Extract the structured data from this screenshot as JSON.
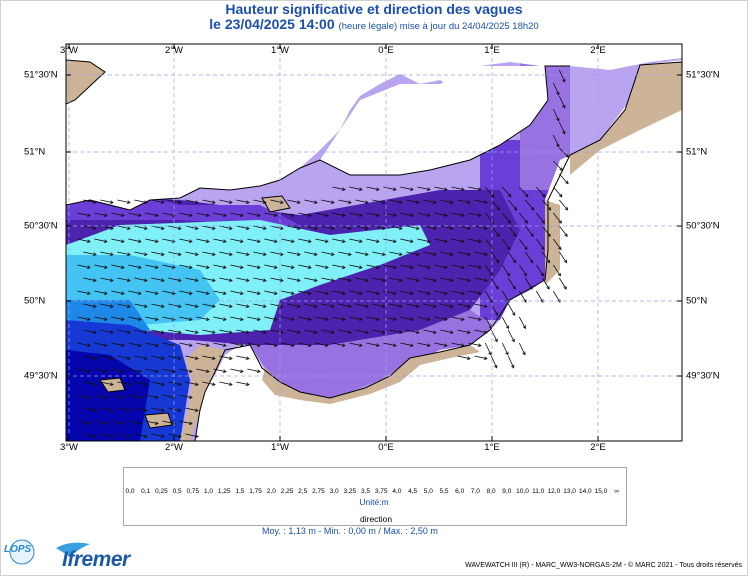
{
  "header": {
    "title": "Hauteur significative et direction des vagues",
    "date_line": "le 23/04/2025 14:00",
    "date_note": "(heure légale) mise à jour du 24/04/2025 18h20"
  },
  "axes": {
    "lon_labels": [
      "3°W",
      "2°W",
      "1°W",
      "0°E",
      "1°E",
      "2°E"
    ],
    "lat_labels": [
      "51°30'N",
      "51°N",
      "50°30'N",
      "50°N",
      "49°30'N"
    ]
  },
  "legend": {
    "values": [
      "0,0",
      "0,1",
      "0,25",
      "0,5",
      "0,75",
      "1,0",
      "1,25",
      "1,5",
      "1,75",
      "2,0",
      "2,25",
      "2,5",
      "2,75",
      "3,0",
      "3,25",
      "3,5",
      "3,75",
      "4,0",
      "4,5",
      "5,0",
      "5,5",
      "6,0",
      "7,0",
      "8,0",
      "9,0",
      "10,0",
      "11,0",
      "12,0",
      "13,0",
      "14,0",
      "15,0",
      "∞"
    ],
    "colors": [
      "#d2b49c",
      "#c8aa94",
      "#d8c8ee",
      "#b8a0ee",
      "#9370db",
      "#6a3ad2",
      "#4a1aa8",
      "#7ff0f8",
      "#40c0f0",
      "#1a88e8",
      "#1a38d0",
      "#0000a8",
      "#d8f4a8",
      "#a8ea78",
      "#48d84a",
      "#0cc050",
      "#18b830",
      "#0aa818",
      "#f4f474",
      "#f8d000",
      "#f8a800",
      "#f47a20",
      "#f8b8b8",
      "#f07070",
      "#e04040",
      "#c81818",
      "#a81818",
      "#8a1010",
      "#e020e0",
      "#8a088a",
      "#700070"
    ],
    "unit": "Unité:m",
    "direction_label": "direction"
  },
  "stats": "Moy. : 1,13 m  -  Min. : 0,00 m / Max. : 2,50 m",
  "credit": "WAVEWATCH III (R) - MARC_WW3-NORGAS-2M - © MARC 2021 - Tous droits réservés",
  "logos": {
    "lops": "LOPS",
    "ifremer": "Ifremer"
  },
  "map_colors": {
    "land": "#cdb397",
    "c05": "#b9a4f0",
    "c075": "#9872e0",
    "c10": "#6b3ed8",
    "c125": "#4c22ae",
    "c15": "#7ff0f8",
    "c175": "#44c4f2",
    "c20": "#1e88e8",
    "c225": "#1638d4",
    "c25": "#0505ae"
  }
}
